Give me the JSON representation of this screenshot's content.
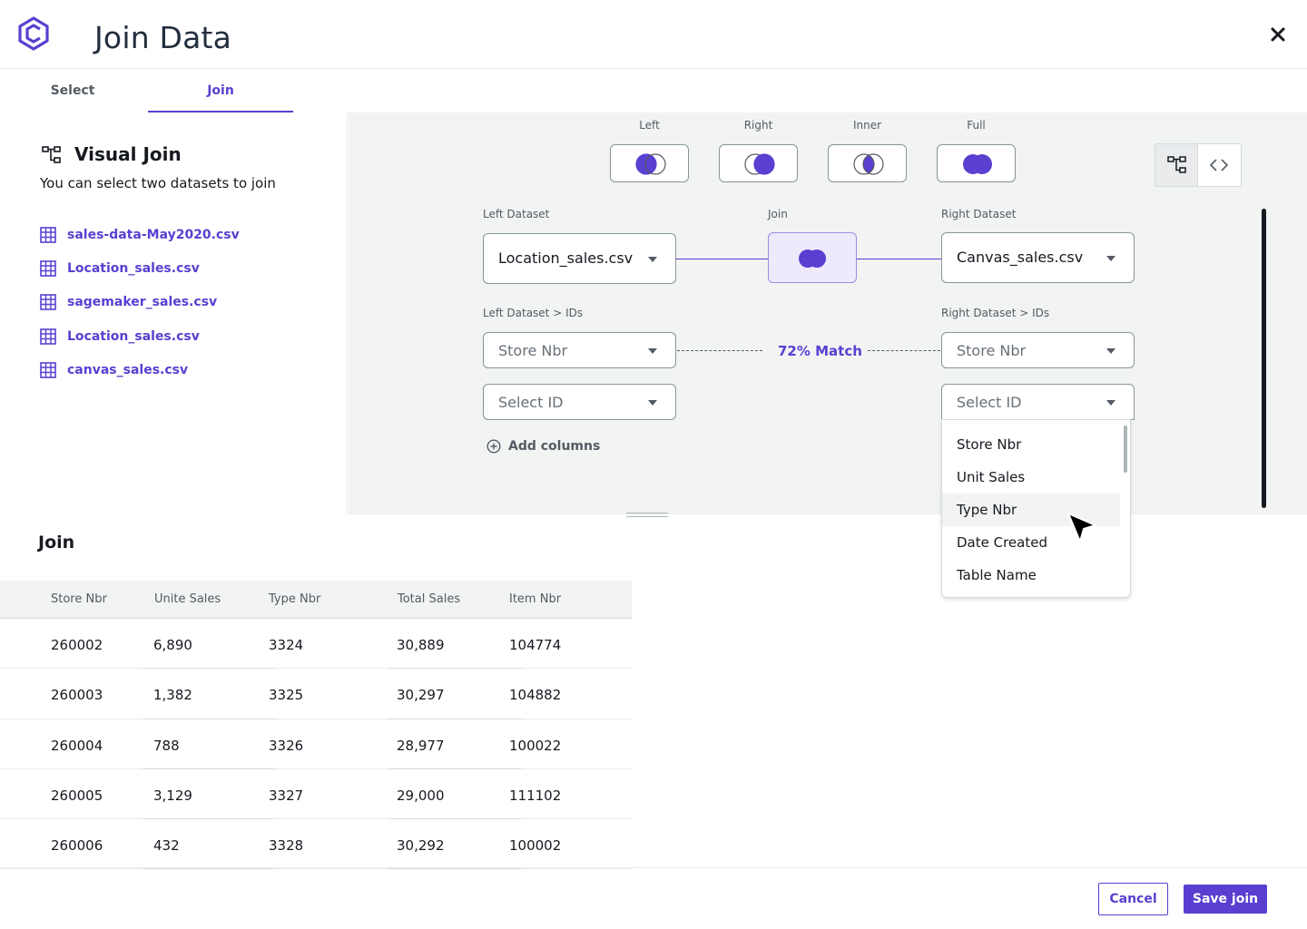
{
  "header": {
    "title": "Join Data",
    "logo_icon": "canvas-logo-icon",
    "close_icon": "close-icon"
  },
  "tabs": [
    {
      "label": "Select"
    },
    {
      "label": "Join"
    }
  ],
  "active_tab": "Join",
  "sidebar": {
    "title": "Visual Join",
    "subtitle": "You can select two datasets to join",
    "files": [
      {
        "name": "sales-data-May2020.csv"
      },
      {
        "name": "Location_sales.csv"
      },
      {
        "name": "sagemaker_sales.csv"
      },
      {
        "name": "Location_sales.csv"
      },
      {
        "name": "canvas_sales.csv"
      }
    ]
  },
  "join_types": [
    {
      "label": "Left"
    },
    {
      "label": "Right"
    },
    {
      "label": "Inner"
    },
    {
      "label": "Full"
    }
  ],
  "canvas": {
    "left_label": "Left Dataset",
    "join_label": "Join",
    "right_label": "Right Dataset",
    "left_dataset": "Location_sales.csv",
    "right_dataset": "Canvas_sales.csv",
    "left_ids_label": "Left Dataset > IDs",
    "right_ids_label": "Right Dataset > IDs",
    "left_id_1": "Store Nbr",
    "right_id_1": "Store Nbr",
    "match": "72% Match",
    "left_id_2": "Select ID",
    "right_id_2": "Select ID",
    "add_columns": "Add columns"
  },
  "dropdown": {
    "options": [
      "Store Nbr",
      "Unit Sales",
      "Type Nbr",
      "Date Created",
      "Table Name"
    ],
    "hovered": "Type Nbr"
  },
  "results": {
    "title": "Join",
    "columns": [
      "Store Nbr",
      "Unite Sales",
      "Type Nbr",
      "Total Sales",
      "Item Nbr"
    ],
    "rows": [
      [
        "260002",
        "6,890",
        "3324",
        "30,889",
        "104774"
      ],
      [
        "260003",
        "1,382",
        "3325",
        "30,297",
        "104882"
      ],
      [
        "260004",
        "788",
        "3326",
        "28,977",
        "100022"
      ],
      [
        "260005",
        "3,129",
        "3327",
        "29,000",
        "111102"
      ],
      [
        "260006",
        "432",
        "3328",
        "30,292",
        "100002"
      ]
    ]
  },
  "footer": {
    "cancel": "Cancel",
    "save": "Save join"
  },
  "colors": {
    "accent": "#5a3fd1",
    "canvas_bg": "#f2f3f3",
    "text": "#16191f"
  }
}
